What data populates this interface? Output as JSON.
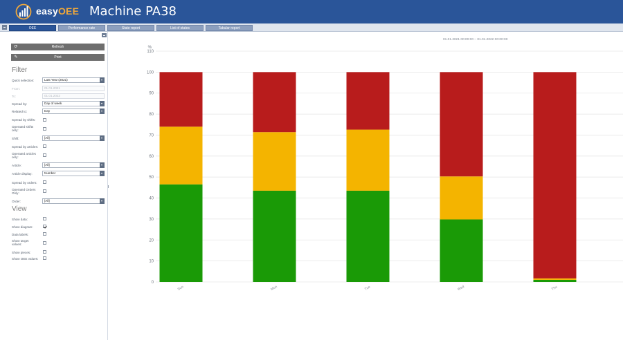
{
  "app": {
    "logo_text_a": "easy",
    "logo_text_b": "OEE",
    "title": "Machine PA38"
  },
  "tabs": [
    "OEE",
    "Performance rate",
    "State report",
    "List of states",
    "Tabular report"
  ],
  "active_tab": 0,
  "sidebar": {
    "refresh_label": "Refresh",
    "print_label": "Print",
    "filter_title": "Filter",
    "view_title": "View",
    "quick_selection": {
      "label": "Quick selection:",
      "value": "Last Year (2021)"
    },
    "from": {
      "label": "From:",
      "value": "01.01.2021"
    },
    "to": {
      "label": "To:",
      "value": "01.01.2022"
    },
    "spread_by": {
      "label": "Spread by:",
      "value": "Day of week"
    },
    "related_to": {
      "label": "Related to:",
      "value": "Day"
    },
    "spread_by_shifts": {
      "label": "Spread by shifts:",
      "checked": false
    },
    "operated_shifts_only": {
      "label": "Operated shifts only:",
      "checked": false
    },
    "shift": {
      "label": "Shift:",
      "value": "[All]"
    },
    "spread_by_articles": {
      "label": "Spread by articles:",
      "checked": false
    },
    "operated_articles_only": {
      "label": "Operated articles only:",
      "checked": false
    },
    "article": {
      "label": "Article:",
      "value": "[All]"
    },
    "article_display": {
      "label": "Article display:",
      "value": "Number"
    },
    "spread_by_orders": {
      "label": "Spread by orders:",
      "checked": false
    },
    "operated_orders_only": {
      "label": "Operated Orders Only:",
      "checked": false
    },
    "order": {
      "label": "Order:",
      "value": "[All]"
    },
    "show_data": {
      "label": "Show data:",
      "checked": false
    },
    "show_diagram": {
      "label": "Show diagram:",
      "checked": true
    },
    "data_labels": {
      "label": "Data labels:",
      "checked": false
    },
    "show_target_values": {
      "label": "Show target values:",
      "checked": false
    },
    "show_pieces": {
      "label": "Show pieces:",
      "checked": false
    },
    "show_oee_values": {
      "label": "Show OEE values:",
      "checked": false
    }
  },
  "date_range": "01.01.2021 00:00:00 – 01.01.2022 00:00:00",
  "colors": {
    "green": "#1a9a06",
    "yellow": "#f4b400",
    "red": "#b81c1c",
    "header": "#2a5599"
  },
  "chart_data": {
    "type": "bar",
    "stacked": true,
    "ylabel": "%",
    "ylim": [
      0,
      110
    ],
    "yticks": [
      0,
      10,
      20,
      30,
      40,
      50,
      60,
      70,
      80,
      90,
      100,
      110
    ],
    "categories": [
      "Sun",
      "Mon",
      "Tue",
      "Wed",
      "Thu"
    ],
    "series": [
      {
        "color": "#1a9a06",
        "values": [
          46.5,
          43.5,
          43.5,
          29.8,
          1.0
        ]
      },
      {
        "color": "#f4b400",
        "values": [
          27.5,
          27.9,
          29.1,
          20.5,
          0.7
        ]
      },
      {
        "color": "#b81c1c",
        "values": [
          26.0,
          28.6,
          27.4,
          49.7,
          98.3
        ]
      }
    ],
    "grid": true
  }
}
